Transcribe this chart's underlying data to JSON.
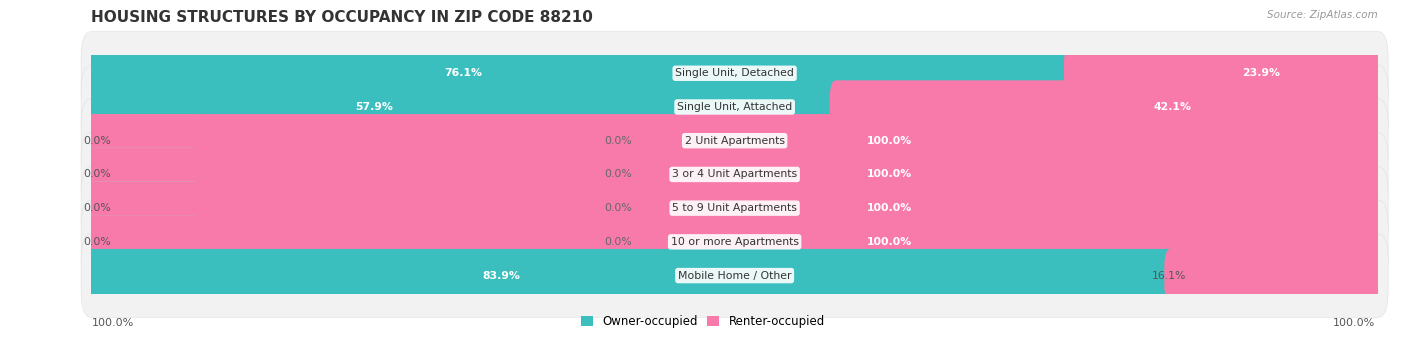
{
  "title": "HOUSING STRUCTURES BY OCCUPANCY IN ZIP CODE 88210",
  "source_text": "Source: ZipAtlas.com",
  "categories": [
    "Single Unit, Detached",
    "Single Unit, Attached",
    "2 Unit Apartments",
    "3 or 4 Unit Apartments",
    "5 to 9 Unit Apartments",
    "10 or more Apartments",
    "Mobile Home / Other"
  ],
  "owner_pct": [
    76.1,
    57.9,
    0.0,
    0.0,
    0.0,
    0.0,
    83.9
  ],
  "renter_pct": [
    23.9,
    42.1,
    100.0,
    100.0,
    100.0,
    100.0,
    16.1
  ],
  "owner_color": "#3bbfbe",
  "renter_color": "#f87aaa",
  "owner_color_light": "#a0d8d8",
  "title_fontsize": 11,
  "label_fontsize": 7.8,
  "figsize": [
    14.06,
    3.42
  ]
}
